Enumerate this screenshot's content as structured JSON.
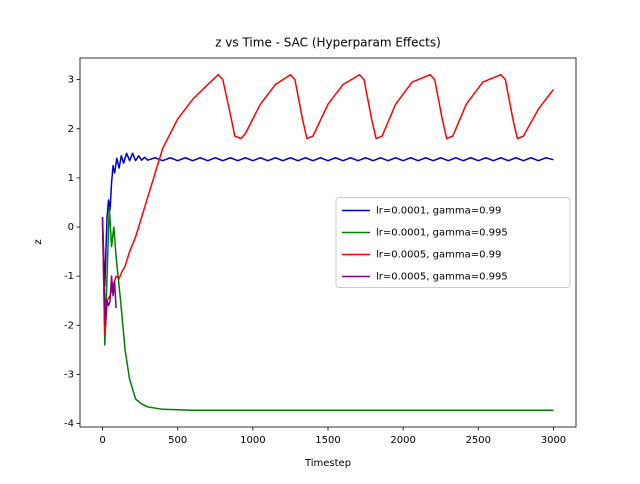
{
  "chart_data": {
    "type": "line",
    "title": "z vs Time - SAC (Hyperparam Effects)",
    "x_label": "Timestep",
    "y_label": "z",
    "xlim": [
      -150,
      3150
    ],
    "xticks": [
      0,
      500,
      1000,
      1500,
      2000,
      2500,
      3000
    ],
    "ylim": [
      -4.07,
      3.44
    ],
    "yticks": [
      -4,
      -3,
      -2,
      -1,
      0,
      1,
      2,
      3
    ],
    "grid": false,
    "legend": "center right",
    "series": [
      {
        "name": "lr=0.0001, gamma=0.99",
        "color": "#0000cc",
        "x": [
          0,
          15,
          30,
          40,
          50,
          60,
          70,
          80,
          95,
          110,
          125,
          140,
          160,
          180,
          200,
          220,
          240,
          260,
          280,
          300,
          350,
          400,
          450,
          500,
          550,
          600,
          650,
          700,
          750,
          800,
          850,
          900,
          950,
          1000,
          1050,
          1100,
          1150,
          1200,
          1250,
          1300,
          1350,
          1400,
          1450,
          1500,
          1550,
          1600,
          1650,
          1700,
          1750,
          1800,
          1850,
          1900,
          1950,
          2000,
          2050,
          2100,
          2150,
          2200,
          2250,
          2300,
          2350,
          2400,
          2450,
          2500,
          2550,
          2600,
          2650,
          2700,
          2750,
          2800,
          2850,
          2900,
          2950,
          3000
        ],
        "values": [
          0.1,
          -1.2,
          0.2,
          0.55,
          0.35,
          0.9,
          1.25,
          1.1,
          1.4,
          1.2,
          1.45,
          1.3,
          1.5,
          1.35,
          1.5,
          1.35,
          1.45,
          1.36,
          1.42,
          1.36,
          1.41,
          1.35,
          1.41,
          1.35,
          1.41,
          1.35,
          1.41,
          1.35,
          1.41,
          1.35,
          1.41,
          1.35,
          1.41,
          1.35,
          1.41,
          1.35,
          1.41,
          1.35,
          1.41,
          1.35,
          1.41,
          1.35,
          1.41,
          1.35,
          1.41,
          1.35,
          1.41,
          1.35,
          1.41,
          1.35,
          1.41,
          1.35,
          1.41,
          1.35,
          1.41,
          1.35,
          1.41,
          1.35,
          1.41,
          1.35,
          1.41,
          1.35,
          1.41,
          1.35,
          1.41,
          1.35,
          1.41,
          1.35,
          1.41,
          1.35,
          1.41,
          1.35,
          1.41,
          1.37
        ]
      },
      {
        "name": "lr=0.0001, gamma=0.995",
        "color": "#008000",
        "x": [
          0,
          15,
          30,
          45,
          60,
          75,
          90,
          120,
          150,
          180,
          220,
          260,
          300,
          400,
          500,
          600,
          1000,
          1500,
          2000,
          2500,
          3000
        ],
        "values": [
          0.2,
          -2.4,
          -1.0,
          0.4,
          -0.4,
          0.0,
          -0.6,
          -1.5,
          -2.5,
          -3.1,
          -3.5,
          -3.6,
          -3.66,
          -3.71,
          -3.72,
          -3.73,
          -3.73,
          -3.73,
          -3.73,
          -3.73,
          -3.73
        ]
      },
      {
        "name": "lr=0.0005, gamma=0.99",
        "color": "#ff0000",
        "x": [
          0,
          15,
          30,
          50,
          70,
          90,
          110,
          130,
          150,
          180,
          220,
          300,
          400,
          500,
          600,
          700,
          770,
          800,
          850,
          880,
          920,
          950,
          1050,
          1150,
          1250,
          1280,
          1330,
          1360,
          1400,
          1500,
          1600,
          1710,
          1740,
          1790,
          1820,
          1860,
          1950,
          2060,
          2180,
          2210,
          2260,
          2290,
          2330,
          2420,
          2530,
          2650,
          2680,
          2730,
          2760,
          2800,
          2900,
          3000
        ],
        "values": [
          0.1,
          -2.2,
          -1.5,
          -1.4,
          -1.2,
          -1.0,
          -1.05,
          -0.9,
          -0.8,
          -0.5,
          -0.2,
          0.6,
          1.6,
          2.2,
          2.6,
          2.9,
          3.1,
          3.0,
          2.3,
          1.85,
          1.8,
          1.9,
          2.5,
          2.9,
          3.1,
          3.0,
          2.2,
          1.8,
          1.85,
          2.5,
          2.9,
          3.1,
          3.0,
          2.2,
          1.8,
          1.85,
          2.5,
          2.95,
          3.1,
          3.0,
          2.2,
          1.8,
          1.85,
          2.5,
          2.95,
          3.1,
          3.0,
          2.2,
          1.8,
          1.85,
          2.4,
          2.8
        ]
      },
      {
        "name": "lr=0.0005, gamma=0.995",
        "color": "#800080",
        "x": [
          0,
          10,
          20,
          30,
          40,
          50,
          60,
          70,
          80,
          90
        ],
        "values": [
          0.2,
          -1.0,
          -2.0,
          -1.5,
          -1.6,
          -1.5,
          -1.0,
          -1.4,
          -1.1,
          -1.65
        ]
      }
    ]
  }
}
